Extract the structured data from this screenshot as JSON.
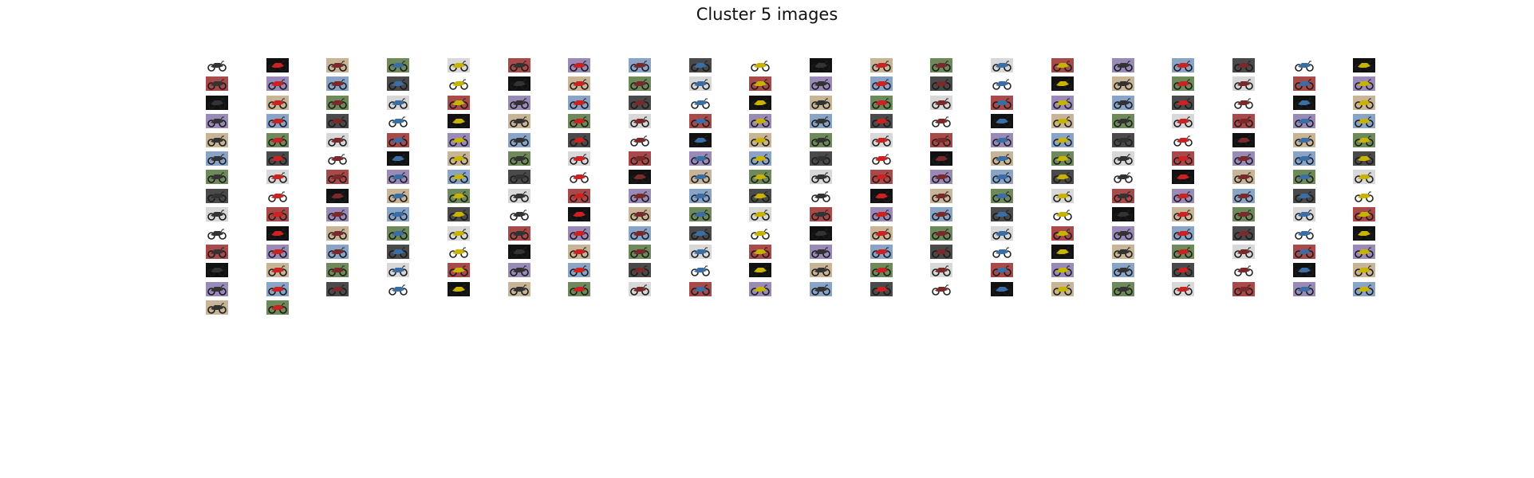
{
  "figure": {
    "title": "Cluster 5 images"
  },
  "grid": {
    "columns": 20,
    "image_count": 262,
    "thumbnail_subject": "motorcycle",
    "thumb_styles": [
      "plain",
      "grey",
      "dark",
      "green",
      "blue",
      "sand",
      "purple",
      "black",
      "red"
    ],
    "accent_colors": [
      "#333333",
      "#555555",
      "#7a2a2a",
      "#2a3a7a",
      "#c8b400",
      "#b0b0b0",
      "#cc2222",
      "#2f6b2f",
      "#3a6ea5",
      "#8a5a2a"
    ]
  }
}
